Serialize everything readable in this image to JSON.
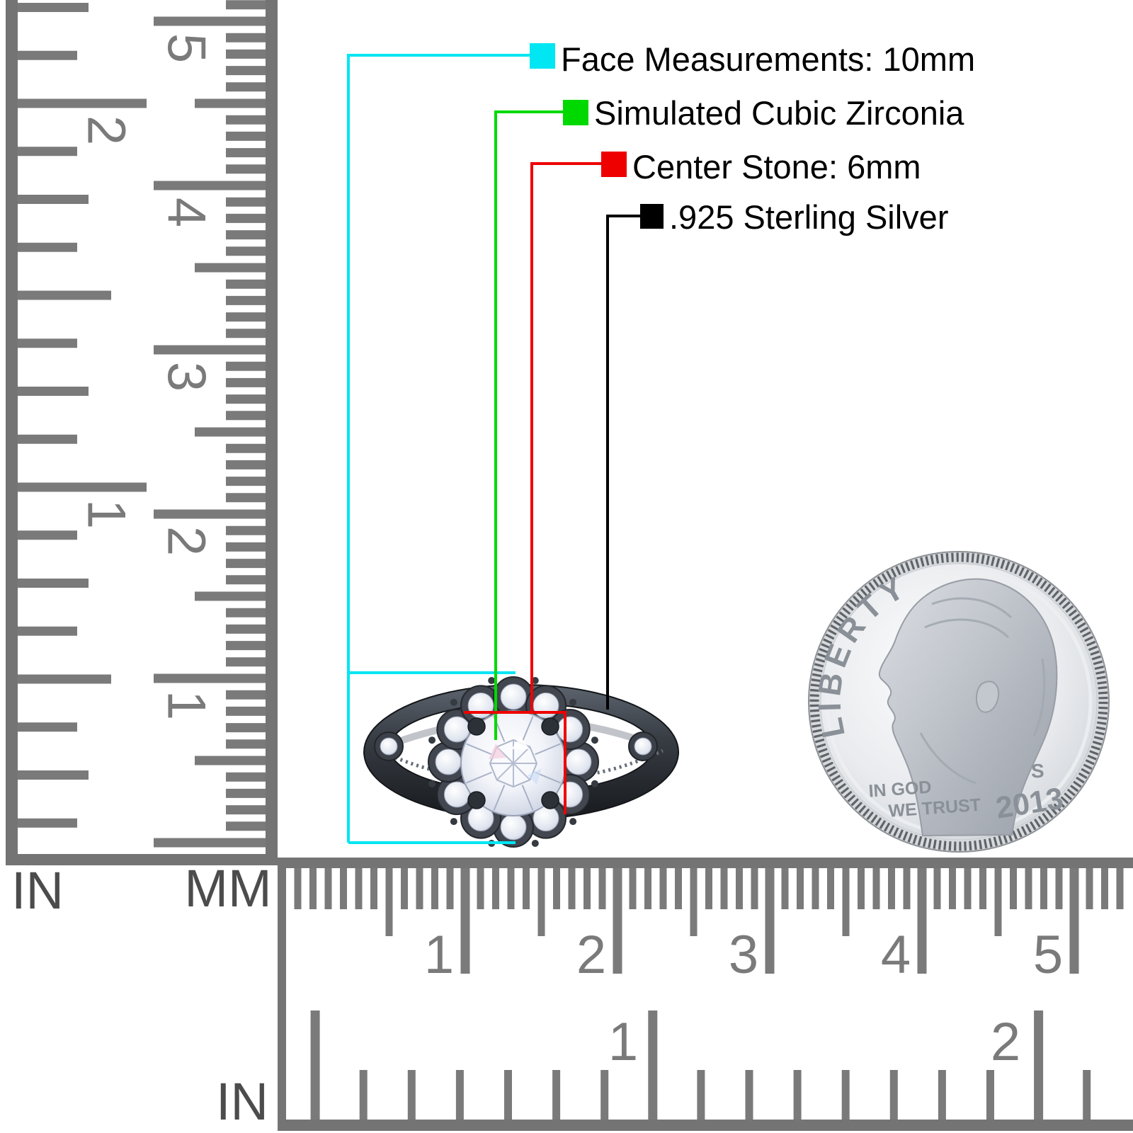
{
  "legend": {
    "items": [
      {
        "swatch": "#00e6f2",
        "label": "Face Measurements: 10mm"
      },
      {
        "swatch": "#00d900",
        "label": "Simulated Cubic Zirconia"
      },
      {
        "swatch": "#ee0000",
        "label": "Center Stone: 6mm"
      },
      {
        "swatch": "#000000",
        "label": ".925 Sterling Silver"
      }
    ]
  },
  "rulers": {
    "vertical": {
      "inch_label": "IN",
      "mm_label": "MM",
      "inch_numbers": [
        "1",
        "2"
      ],
      "cm_numbers": [
        "1",
        "2",
        "3",
        "4",
        "5"
      ]
    },
    "horizontal": {
      "inch_label": "IN",
      "inch_numbers": [
        "1",
        "2"
      ],
      "cm_numbers": [
        "1",
        "2",
        "3",
        "4",
        "5"
      ]
    },
    "tick_color": "#7a7a7a"
  },
  "coin": {
    "liberty": "LIBERTY",
    "motto_line1": "IN GOD",
    "motto_line2": "WE TRUST",
    "mint_mark": "S",
    "year": "2013"
  }
}
